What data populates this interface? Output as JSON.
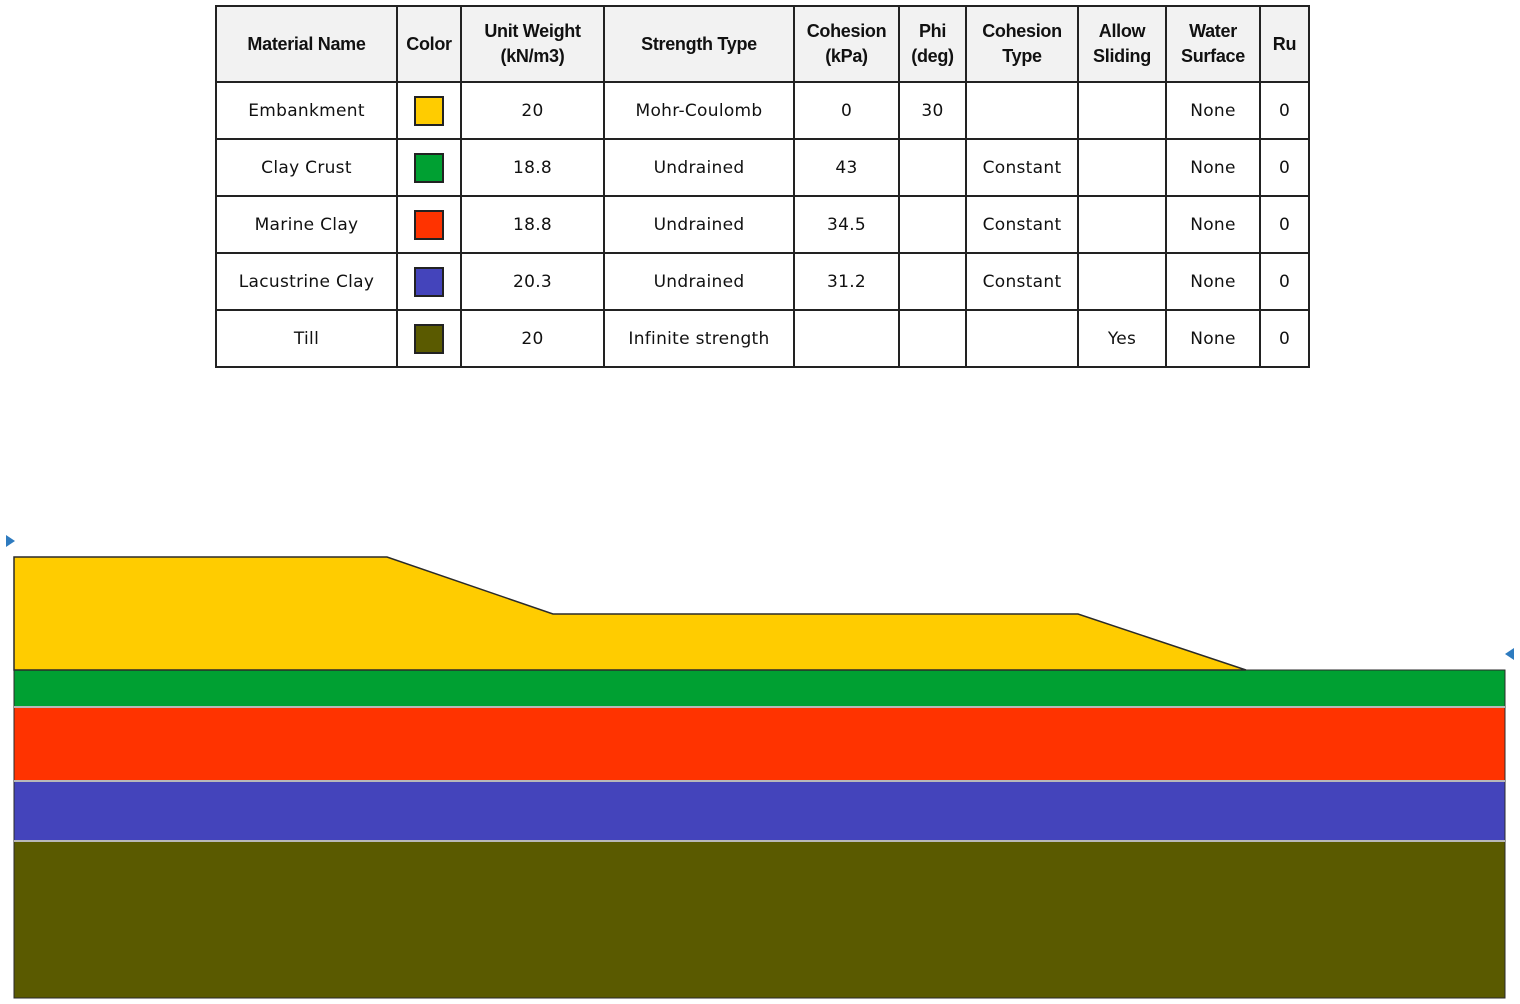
{
  "table": {
    "headers": [
      "Material Name",
      "Color",
      "Unit Weight\n(kN/m3)",
      "Strength Type",
      "Cohesion\n(kPa)",
      "Phi\n(deg)",
      "Cohesion\nType",
      "Allow\nSliding",
      "Water\nSurface",
      "Ru"
    ],
    "rows": [
      {
        "name": "Embankment",
        "color": "#ffcc00",
        "unit_weight": "20",
        "strength_type": "Mohr-Coulomb",
        "cohesion": "0",
        "phi": "30",
        "cohesion_type": "",
        "allow_sliding": "",
        "water_surface": "None",
        "ru": "0"
      },
      {
        "name": "Clay Crust",
        "color": "#00a032",
        "unit_weight": "18.8",
        "strength_type": "Undrained",
        "cohesion": "43",
        "phi": "",
        "cohesion_type": "Constant",
        "allow_sliding": "",
        "water_surface": "None",
        "ru": "0"
      },
      {
        "name": "Marine Clay",
        "color": "#ff3300",
        "unit_weight": "18.8",
        "strength_type": "Undrained",
        "cohesion": "34.5",
        "phi": "",
        "cohesion_type": "Constant",
        "allow_sliding": "",
        "water_surface": "None",
        "ru": "0"
      },
      {
        "name": "Lacustrine Clay",
        "color": "#4444bb",
        "unit_weight": "20.3",
        "strength_type": "Undrained",
        "cohesion": "31.2",
        "phi": "",
        "cohesion_type": "Constant",
        "allow_sliding": "",
        "water_surface": "None",
        "ru": "0"
      },
      {
        "name": "Till",
        "color": "#5a5a00",
        "unit_weight": "20",
        "strength_type": "Infinite strength",
        "cohesion": "",
        "phi": "",
        "cohesion_type": "",
        "allow_sliding": "Yes",
        "water_surface": "None",
        "ru": "0"
      }
    ]
  },
  "section": {
    "layers_top_to_bottom": [
      "Embankment",
      "Clay Crust",
      "Marine Clay",
      "Lacustrine Clay",
      "Till"
    ],
    "marker_color": "#2e7bbf"
  }
}
